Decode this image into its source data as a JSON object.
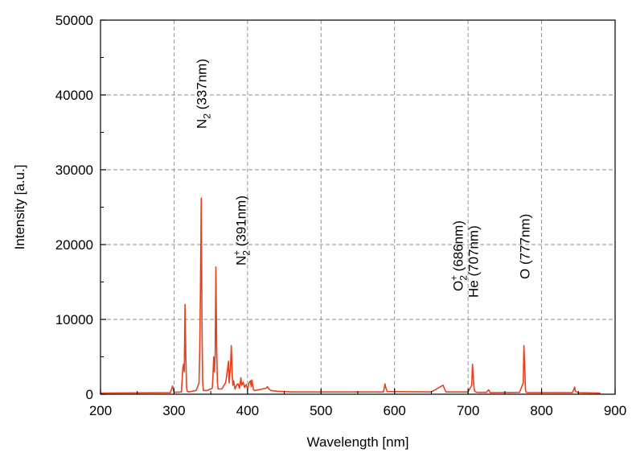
{
  "chart_data": {
    "type": "line",
    "xlabel": "Wavelength [nm]",
    "ylabel": "Intensity [a.u.]",
    "xlim": [
      200,
      900
    ],
    "ylim": [
      0,
      50000
    ],
    "x_ticks": [
      "200",
      "300",
      "400",
      "500",
      "600",
      "700",
      "800",
      "900"
    ],
    "y_ticks": [
      "0",
      "10000",
      "20000",
      "30000",
      "40000",
      "50000"
    ],
    "grid": true,
    "line_color": "#e8401c",
    "series": [
      {
        "x": [
          200,
          295,
          297,
          298,
          299,
          300,
          310,
          312,
          313,
          314,
          315,
          316,
          317,
          318,
          320,
          330,
          334,
          335,
          336,
          337,
          338,
          339,
          340,
          345,
          352,
          353,
          354,
          355,
          356,
          357,
          358,
          359,
          360,
          365,
          370,
          371,
          373,
          374,
          375,
          376,
          377,
          378,
          379,
          380,
          381,
          382,
          383,
          385,
          387,
          389,
          391,
          392,
          394,
          396,
          398,
          400,
          402,
          404,
          405,
          406,
          408,
          410,
          420,
          425,
          427,
          429,
          432,
          440,
          460,
          500,
          585,
          587,
          588,
          590,
          650,
          666,
          668,
          670,
          700,
          705,
          706,
          707,
          708,
          709,
          712,
          725,
          728,
          730,
          770,
          775,
          776,
          777,
          778,
          779,
          781,
          842,
          845,
          846,
          850,
          880
        ],
        "y": [
          150,
          200,
          800,
          1100,
          700,
          250,
          300,
          3500,
          4000,
          3000,
          12000,
          5000,
          900,
          400,
          300,
          500,
          1500,
          6000,
          14000,
          26200,
          9000,
          1500,
          500,
          500,
          800,
          2500,
          5000,
          3000,
          5200,
          17000,
          6000,
          1500,
          700,
          700,
          1500,
          2000,
          3500,
          4400,
          1500,
          2800,
          4000,
          6500,
          3000,
          1200,
          1800,
          1200,
          700,
          1200,
          1400,
          800,
          2200,
          1200,
          1600,
          900,
          1300,
          700,
          1500,
          1800,
          1000,
          1900,
          600,
          500,
          700,
          800,
          1000,
          700,
          500,
          400,
          300,
          300,
          300,
          1400,
          900,
          350,
          300,
          1200,
          700,
          300,
          300,
          1200,
          4000,
          2500,
          900,
          400,
          250,
          250,
          600,
          200,
          250,
          1500,
          6500,
          4000,
          600,
          250,
          200,
          200,
          950,
          400,
          200,
          150
        ]
      }
    ],
    "annotations": [
      {
        "x": 337,
        "main": "N",
        "sub": "2",
        "sup": "",
        "rest": " (337nm)"
      },
      {
        "x": 391,
        "main": "N",
        "sub": "2",
        "sup": "+",
        "rest": " (391nm)"
      },
      {
        "x": 686,
        "main": "O",
        "sub": "2",
        "sup": "+",
        "rest": " (686nm)"
      },
      {
        "x": 707,
        "main": "He (707nm)",
        "sub": "",
        "sup": "",
        "rest": ""
      },
      {
        "x": 777,
        "main": "O (777nm)",
        "sub": "",
        "sup": "",
        "rest": ""
      }
    ]
  }
}
